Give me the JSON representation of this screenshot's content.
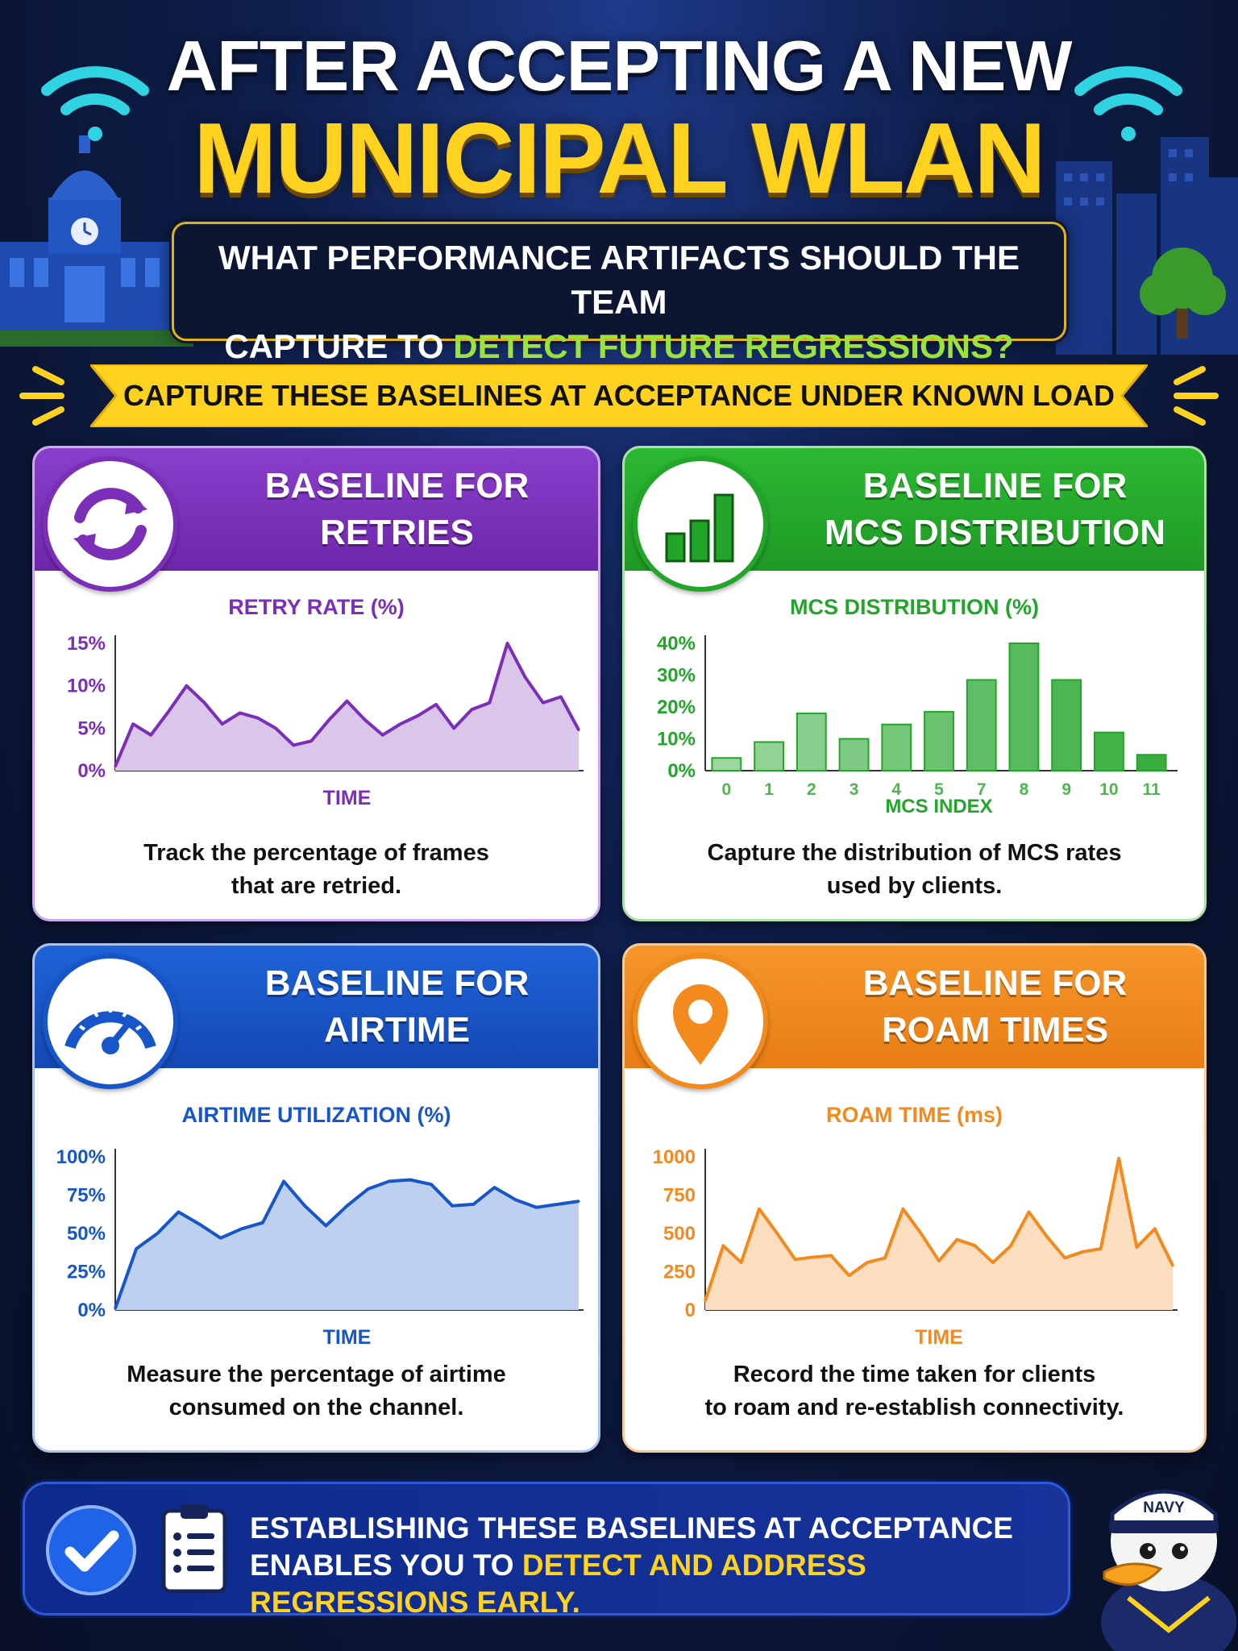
{
  "header": {
    "title_line1": "AFTER ACCEPTING A NEW",
    "title_line2": "MUNICIPAL WLAN",
    "question_line1": "WHAT PERFORMANCE ARTIFACTS SHOULD THE TEAM",
    "question_line2_pre": "CAPTURE TO ",
    "question_line2_highlight": "DETECT FUTURE REGRESSIONS?"
  },
  "banner": {
    "text": "CAPTURE THESE BASELINES AT ACCEPTANCE UNDER KNOWN LOAD"
  },
  "cards": {
    "retries": {
      "title1": "BASELINE FOR",
      "title2": "RETRIES",
      "chart_title": "RETRY RATE (%)",
      "desc1": "Track the percentage of frames",
      "desc2": "that are retried.",
      "color": "#7b2fb8",
      "icon": "refresh-icon"
    },
    "mcs": {
      "title1": "BASELINE FOR",
      "title2": "MCS DISTRIBUTION",
      "chart_title": "MCS DISTRIBUTION (%)",
      "desc1": "Capture the distribution of MCS rates",
      "desc2": "used by clients.",
      "color": "#23a52a",
      "icon": "bar-chart-icon"
    },
    "airtime": {
      "title1": "BASELINE FOR",
      "title2": "AIRTIME",
      "chart_title": "AIRTIME UTILIZATION (%)",
      "desc1": "Measure the percentage of airtime",
      "desc2": "consumed on the channel.",
      "color": "#1656c8",
      "icon": "gauge-icon"
    },
    "roam": {
      "title1": "BASELINE FOR",
      "title2": "ROAM TIMES",
      "chart_title": "ROAM TIME (ms)",
      "desc1": "Record the time taken for clients",
      "desc2": "to roam and re-establish connectivity.",
      "color": "#f28a1e",
      "icon": "location-pin-icon"
    }
  },
  "footer": {
    "line1": "ESTABLISHING THESE BASELINES AT ACCEPTANCE",
    "line2_pre": "ENABLES YOU TO ",
    "line2_highlight": "DETECT AND ADDRESS REGRESSIONS EARLY.",
    "mascot_cap": "NAVY"
  },
  "chart_data": [
    {
      "type": "area",
      "title": "RETRY RATE (%)",
      "xlabel": "TIME",
      "ylabel": "",
      "yticks": [
        "0%",
        "5%",
        "10%",
        "15%"
      ],
      "ylim": [
        0,
        15
      ],
      "x": [
        0,
        1,
        2,
        3,
        4,
        5,
        6,
        7,
        8,
        9,
        10,
        11,
        12,
        13,
        14,
        15,
        16,
        17,
        18,
        19,
        20,
        21,
        22,
        23,
        24,
        25,
        26
      ],
      "values": [
        0.5,
        5.5,
        4.2,
        7,
        10,
        8,
        5.5,
        6.8,
        6.2,
        5,
        3,
        3.5,
        6,
        8.2,
        6,
        4.2,
        5.5,
        6.5,
        7.8,
        5,
        7.2,
        8,
        15,
        11,
        8,
        8.7,
        4.8
      ],
      "color": "#7b2fb8"
    },
    {
      "type": "bar",
      "title": "MCS DISTRIBUTION (%)",
      "xlabel": "MCS INDEX",
      "ylabel": "",
      "yticks": [
        "0%",
        "10%",
        "20%",
        "30%",
        "40%"
      ],
      "ylim": [
        0,
        40
      ],
      "categories": [
        "0",
        "1",
        "2",
        "3",
        "4",
        "5",
        "7",
        "8",
        "9",
        "10",
        "11"
      ],
      "values": [
        4,
        9,
        18,
        10,
        14.5,
        18.5,
        28.5,
        40,
        28.5,
        12,
        5
      ],
      "color": "#23a52a"
    },
    {
      "type": "area",
      "title": "AIRTIME UTILIZATION (%)",
      "xlabel": "TIME",
      "ylabel": "",
      "yticks": [
        "0%",
        "25%",
        "50%",
        "75%",
        "100%"
      ],
      "ylim": [
        0,
        100
      ],
      "x": [
        0,
        1,
        2,
        3,
        4,
        5,
        6,
        7,
        8,
        9,
        10,
        11,
        12,
        13,
        14,
        15,
        16,
        17,
        18,
        19,
        20,
        21,
        22
      ],
      "values": [
        1,
        40,
        50,
        64,
        56,
        47,
        53,
        57,
        84,
        68,
        55,
        68,
        79,
        84,
        85,
        82,
        68,
        69,
        80,
        72,
        67,
        69,
        71
      ],
      "color": "#1656c8"
    },
    {
      "type": "area",
      "title": "ROAM TIME (ms)",
      "xlabel": "TIME",
      "ylabel": "",
      "yticks": [
        "0",
        "250",
        "500",
        "750",
        "1000"
      ],
      "ylim": [
        0,
        1000
      ],
      "x": [
        0,
        1,
        2,
        3,
        4,
        5,
        6,
        7,
        8,
        9,
        10,
        11,
        12,
        13,
        14,
        15,
        16,
        17,
        18,
        19,
        20,
        21,
        22,
        23,
        24,
        25,
        26
      ],
      "values": [
        60,
        420,
        310,
        660,
        500,
        330,
        345,
        355,
        225,
        310,
        340,
        660,
        500,
        320,
        460,
        420,
        310,
        420,
        640,
        480,
        340,
        380,
        400,
        990,
        410,
        530,
        290
      ],
      "color": "#f28a1e"
    }
  ]
}
